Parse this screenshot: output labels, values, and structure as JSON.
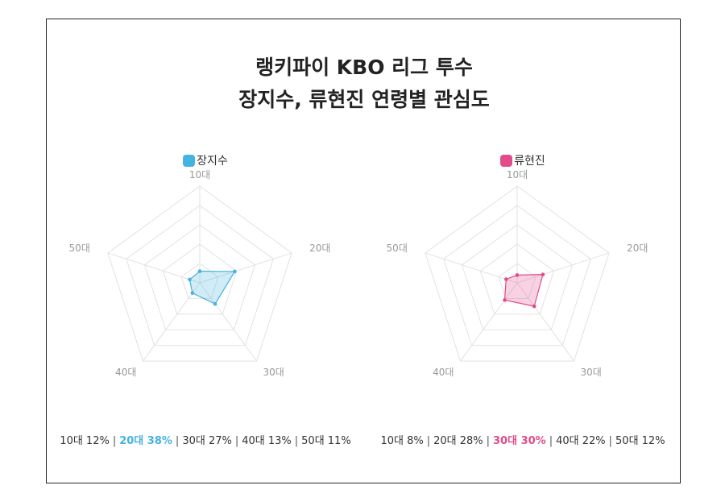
{
  "title": {
    "line1": "랭키파이 KBO 리그 투수",
    "line2": "장지수, 류현진 연령별 관심도"
  },
  "chart_data": [
    {
      "type": "radar",
      "series": [
        {
          "name": "장지수",
          "values": [
            12,
            38,
            27,
            13,
            11
          ]
        }
      ],
      "categories": [
        "10대",
        "20대",
        "30대",
        "40대",
        "50대"
      ],
      "rlim": [
        0,
        100
      ],
      "grid_levels": 5,
      "color": "#45b3e0",
      "summary": [
        {
          "label": "10대",
          "value": "12%",
          "highlight": false
        },
        {
          "label": "20대",
          "value": "38%",
          "highlight": true
        },
        {
          "label": "30대",
          "value": "27%",
          "highlight": false
        },
        {
          "label": "40대",
          "value": "13%",
          "highlight": false
        },
        {
          "label": "50대",
          "value": "11%",
          "highlight": false
        }
      ]
    },
    {
      "type": "radar",
      "series": [
        {
          "name": "류현진",
          "values": [
            8,
            28,
            30,
            22,
            12
          ]
        }
      ],
      "categories": [
        "10대",
        "20대",
        "30대",
        "40대",
        "50대"
      ],
      "rlim": [
        0,
        100
      ],
      "grid_levels": 5,
      "color": "#e34b8a",
      "summary": [
        {
          "label": "10대",
          "value": "8%",
          "highlight": false
        },
        {
          "label": "20대",
          "value": "28%",
          "highlight": false
        },
        {
          "label": "30대",
          "value": "30%",
          "highlight": true
        },
        {
          "label": "40대",
          "value": "22%",
          "highlight": false
        },
        {
          "label": "50대",
          "value": "12%",
          "highlight": false
        }
      ]
    }
  ]
}
